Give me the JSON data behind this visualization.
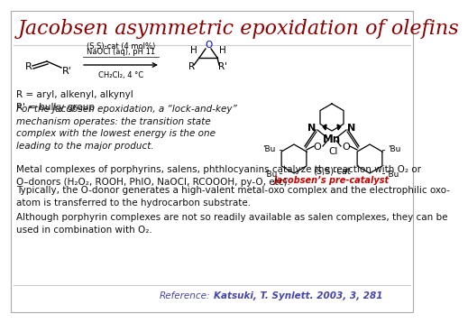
{
  "title": "Jacobsen asymmetric epoxidation of olefins",
  "title_color": "#8B0000",
  "title_fontsize": 16,
  "bg_color": "#FFFFFF",
  "border_color": "#AAAAAA",
  "r_labels": "R = aryl, alkenyl, alkynyl\nR' = bulky group",
  "italic_text": "For the Jacobsen epoxidation, a “lock-and-key”\nmechanism operates: the transition state\ncomplex with the lowest energy is the one\nleading to the major product.",
  "para1": "Metal complexes of porphyrins, salens, phthlocyanins catalyze the reaction with O₂ or\nO–donors (H₂O₂, ROOH, PhIO, NaOCl, RCOOOH, py-O, etc).",
  "para2": "Typically, the O-donor generates a high-valent metal-oxo complex and the electrophilic oxo-\natom is transferred to the hydrocarbon substrate.",
  "para3": "Although porphyrin complexes are not so readily available as salen complexes, they can be\nused in combination with O₂.",
  "ref_label": "Reference:",
  "ref_text": "Katsuki, T. Synlett. 2003, 3, 281",
  "ss_cat_label": "(S,S)-cat",
  "jacobsen_label": "Jacobsen’s pre-catalyst",
  "jacobsen_color": "#CC0000",
  "footer_color": "#4444AA",
  "text_color": "#111111",
  "small_fontsize": 7.5,
  "body_fontsize": 7.5,
  "italic_fontsize": 7.5
}
